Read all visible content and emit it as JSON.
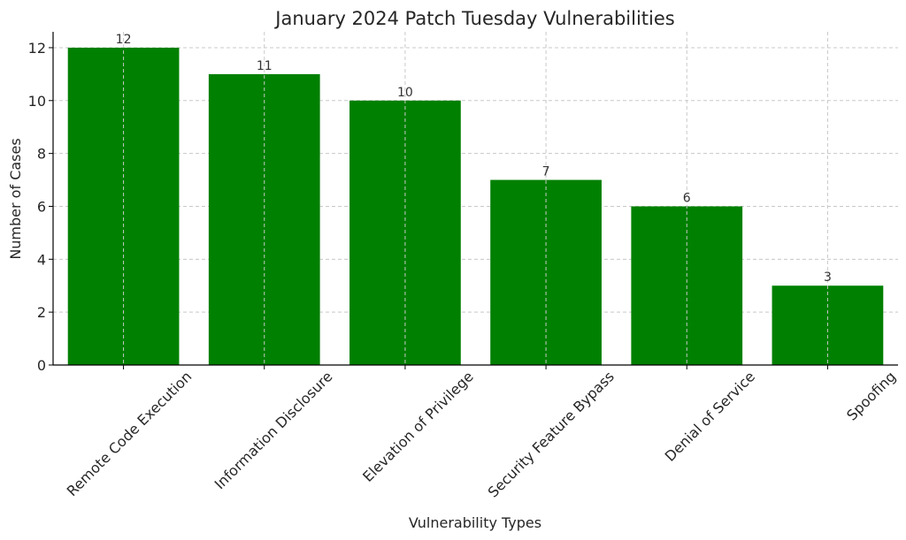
{
  "chart_data": {
    "type": "bar",
    "title": "January 2024 Patch Tuesday Vulnerabilities",
    "xlabel": "Vulnerability Types",
    "ylabel": "Number of Cases",
    "categories": [
      "Remote Code Execution",
      "Information Disclosure",
      "Elevation of Privilege",
      "Security Feature Bypass",
      "Denial of Service",
      "Spoofing"
    ],
    "values": [
      12,
      11,
      10,
      7,
      6,
      3
    ],
    "data_labels": [
      "12",
      "11",
      "10",
      "7",
      "6",
      "3"
    ],
    "ylim": [
      0,
      12.6
    ],
    "yticks": [
      0,
      2,
      4,
      6,
      8,
      10,
      12
    ],
    "ytick_labels": [
      "0",
      "2",
      "4",
      "6",
      "8",
      "10",
      "12"
    ],
    "grid": true,
    "bar_color": "#008000"
  }
}
